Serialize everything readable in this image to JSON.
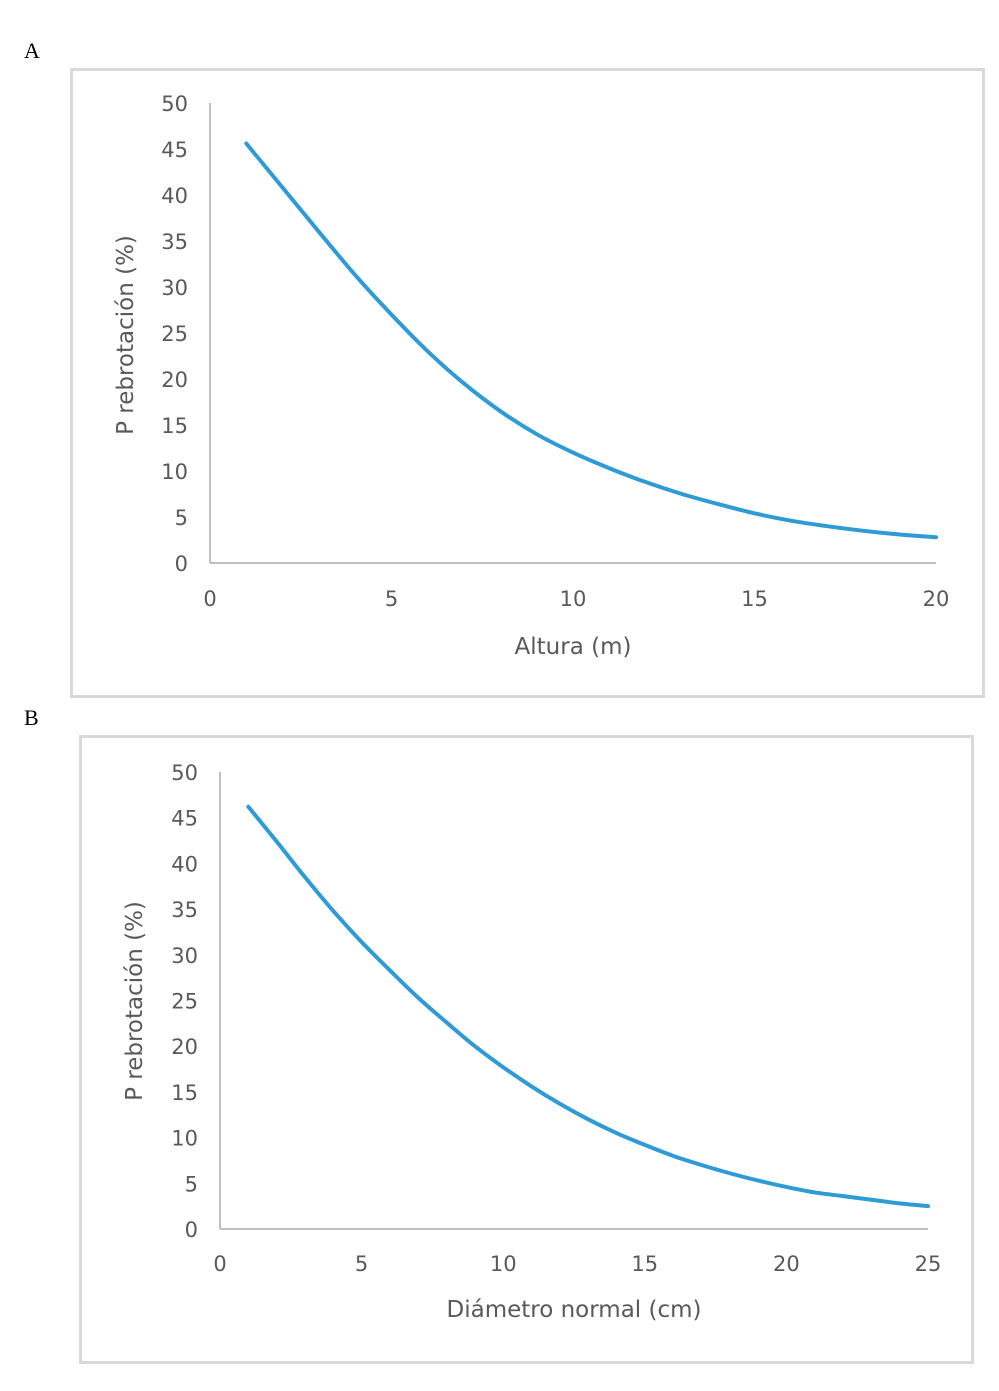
{
  "figure": {
    "panel_a_label": "A",
    "panel_b_label": "B"
  },
  "chart_data": [
    {
      "type": "line",
      "title": "",
      "xlabel": "Altura (m)",
      "ylabel": "P rebrotación (%)",
      "xlim": [
        0,
        20
      ],
      "ylim": [
        0,
        50
      ],
      "xticks": [
        0,
        5,
        10,
        15,
        20
      ],
      "yticks": [
        0,
        5,
        10,
        15,
        20,
        25,
        30,
        35,
        40,
        45,
        50
      ],
      "grid": false,
      "legend": "none",
      "color": "#2E9BD6",
      "series": [
        {
          "x": [
            1,
            2,
            3,
            4,
            5,
            6,
            7,
            8,
            9,
            10,
            11,
            12,
            13,
            14,
            15,
            16,
            17,
            18,
            19,
            20
          ],
          "y": [
            45.6,
            40.8,
            36.0,
            31.3,
            27.0,
            23.0,
            19.5,
            16.5,
            14.0,
            12.0,
            10.3,
            8.8,
            7.5,
            6.4,
            5.4,
            4.6,
            4.0,
            3.5,
            3.1,
            2.8
          ]
        }
      ]
    },
    {
      "type": "line",
      "title": "",
      "xlabel": "Diámetro normal (cm)",
      "ylabel": "P rebrotación (%)",
      "xlim": [
        0,
        25
      ],
      "ylim": [
        0,
        50
      ],
      "xticks": [
        0,
        5,
        10,
        15,
        20,
        25
      ],
      "yticks": [
        0,
        5,
        10,
        15,
        20,
        25,
        30,
        35,
        40,
        45,
        50
      ],
      "grid": false,
      "legend": "none",
      "color": "#2E9BD6",
      "series": [
        {
          "x": [
            1,
            2,
            3,
            4,
            5,
            6,
            7,
            8,
            9,
            10,
            11,
            12,
            13,
            14,
            15,
            16,
            17,
            18,
            19,
            20,
            21,
            22,
            23,
            24,
            25
          ],
          "y": [
            46.2,
            42.4,
            38.5,
            34.8,
            31.4,
            28.3,
            25.3,
            22.6,
            20.0,
            17.7,
            15.6,
            13.7,
            12.0,
            10.5,
            9.2,
            8.0,
            7.0,
            6.1,
            5.3,
            4.6,
            4.0,
            3.6,
            3.2,
            2.8,
            2.5
          ]
        }
      ]
    }
  ]
}
